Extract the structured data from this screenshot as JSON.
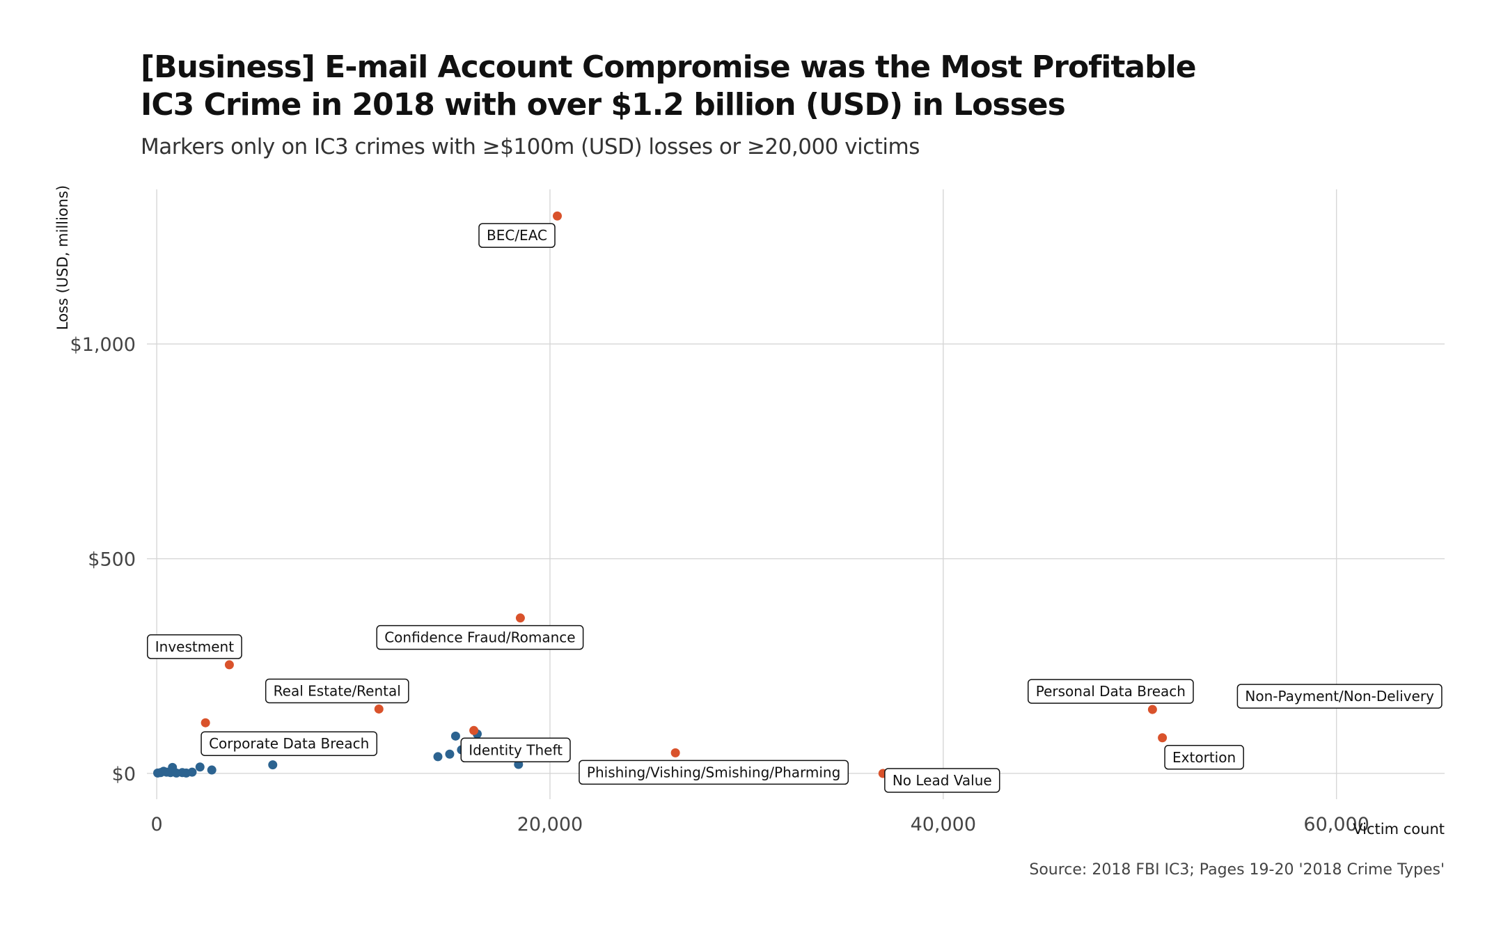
{
  "chart_data": {
    "type": "scatter",
    "title_line1": "[Business] E-mail Account Compromise was the Most Profitable",
    "title_line2": "IC3 Crime in 2018 with over $1.2 billion (USD) in Losses",
    "subtitle": "Markers only on IC3 crimes with ≥$100m (USD) losses or ≥20,000 victims",
    "caption": "Source: 2018 FBI IC3; Pages 19-20 '2018 Crime Types'",
    "xlabel": "Victim count",
    "ylabel": "Loss (USD, millions)",
    "xlim": [
      -500,
      65500
    ],
    "ylim": [
      -60,
      1360
    ],
    "x_ticks": [
      0,
      20000,
      40000,
      60000
    ],
    "x_tick_labels": [
      "0",
      "20,000",
      "40,000",
      "60,000"
    ],
    "y_ticks": [
      0,
      500,
      1000
    ],
    "y_tick_labels": [
      "$0",
      "$500",
      "$1,000"
    ],
    "grid": true,
    "colors": {
      "highlight": "#d9522b",
      "other": "#2c6390"
    },
    "labeled_points": [
      {
        "label": "BEC/EAC",
        "x": 20373,
        "y": 1298
      },
      {
        "label": "Confidence Fraud/Romance",
        "x": 18493,
        "y": 362
      },
      {
        "label": "Investment",
        "x": 3693,
        "y": 253
      },
      {
        "label": "Real Estate/Rental",
        "x": 11300,
        "y": 150
      },
      {
        "label": "Corporate Data Breach",
        "x": 2480,
        "y": 118
      },
      {
        "label": "Identity Theft",
        "x": 16128,
        "y": 100
      },
      {
        "label": "Phishing/Vishing/Smishing/Pharming",
        "x": 26379,
        "y": 48
      },
      {
        "label": "No Lead Value",
        "x": 36936,
        "y": 0
      },
      {
        "label": "Personal Data Breach",
        "x": 50642,
        "y": 149
      },
      {
        "label": "Extortion",
        "x": 51146,
        "y": 83
      },
      {
        "label": "Non-Payment/Non-Delivery",
        "x": 65116,
        "y": 183
      }
    ],
    "other_points": [
      {
        "x": 50,
        "y": 1
      },
      {
        "x": 200,
        "y": 2
      },
      {
        "x": 350,
        "y": 5
      },
      {
        "x": 500,
        "y": 3
      },
      {
        "x": 700,
        "y": 2
      },
      {
        "x": 800,
        "y": 14
      },
      {
        "x": 1000,
        "y": 1
      },
      {
        "x": 1300,
        "y": 2
      },
      {
        "x": 1500,
        "y": 1
      },
      {
        "x": 1800,
        "y": 3
      },
      {
        "x": 2200,
        "y": 15
      },
      {
        "x": 2800,
        "y": 8
      },
      {
        "x": 5900,
        "y": 20
      },
      {
        "x": 10900,
        "y": 63
      },
      {
        "x": 14300,
        "y": 39
      },
      {
        "x": 14900,
        "y": 45
      },
      {
        "x": 15200,
        "y": 87
      },
      {
        "x": 15500,
        "y": 55
      },
      {
        "x": 15700,
        "y": 70
      },
      {
        "x": 16300,
        "y": 92
      },
      {
        "x": 18400,
        "y": 21
      }
    ]
  }
}
